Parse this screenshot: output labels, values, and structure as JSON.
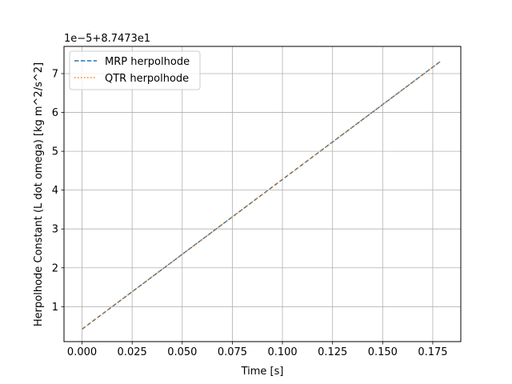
{
  "chart_data": {
    "type": "line",
    "xlabel": "Time [s]",
    "ylabel": "Herpolhode Constant (L dot omega) [kg m^2/s^2]",
    "offset_text": "1e−5+8.7473e1",
    "xlim": [
      -0.009,
      0.189
    ],
    "ylim": [
      0.1,
      7.7
    ],
    "x_ticks": [
      0.0,
      0.025,
      0.05,
      0.075,
      0.1,
      0.125,
      0.15,
      0.175
    ],
    "x_tick_labels": [
      "0.000",
      "0.025",
      "0.050",
      "0.075",
      "0.100",
      "0.125",
      "0.150",
      "0.175"
    ],
    "y_ticks": [
      1,
      2,
      3,
      4,
      5,
      6,
      7
    ],
    "y_tick_labels": [
      "1",
      "2",
      "3",
      "4",
      "5",
      "6",
      "7"
    ],
    "grid": true,
    "legend_position": "top-left",
    "series": [
      {
        "name": "MRP herpolhode",
        "color": "#1f77b4",
        "dash": "dashed",
        "x": [
          0.0,
          0.179
        ],
        "y": [
          0.42,
          7.32
        ]
      },
      {
        "name": "QTR herpolhode",
        "color": "#ff7f0e",
        "dash": "dotted",
        "x": [
          0.0,
          0.179
        ],
        "y": [
          0.42,
          7.32
        ]
      }
    ]
  }
}
